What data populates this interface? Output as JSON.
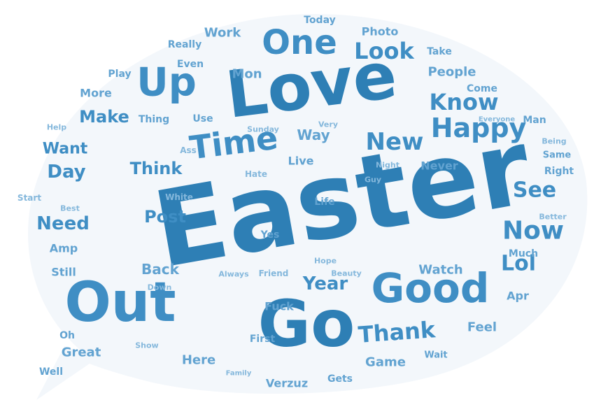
{
  "bubble_color": "#f3f7fb",
  "palette": {
    "dark": "#2e7fb5",
    "mid": "#3f8ec4",
    "light": "#62a3d1",
    "pale": "#85b8dc"
  },
  "words": [
    {
      "text": "Easter",
      "tone": "dark"
    },
    {
      "text": "Love",
      "tone": "dark"
    },
    {
      "text": "Go",
      "tone": "dark"
    },
    {
      "text": "Out",
      "tone": "mid"
    },
    {
      "text": "Good",
      "tone": "mid"
    },
    {
      "text": "One",
      "tone": "mid"
    },
    {
      "text": "Up",
      "tone": "mid"
    },
    {
      "text": "Time",
      "tone": "mid"
    },
    {
      "text": "Happy",
      "tone": "mid"
    },
    {
      "text": "Now",
      "tone": "mid"
    },
    {
      "text": "Thank",
      "tone": "mid"
    },
    {
      "text": "Look",
      "tone": "mid"
    },
    {
      "text": "Know",
      "tone": "mid"
    },
    {
      "text": "New",
      "tone": "mid"
    },
    {
      "text": "Lol",
      "tone": "mid"
    },
    {
      "text": "See",
      "tone": "mid"
    },
    {
      "text": "Year",
      "tone": "mid"
    },
    {
      "text": "Day",
      "tone": "mid"
    },
    {
      "text": "Need",
      "tone": "mid"
    },
    {
      "text": "Make",
      "tone": "mid"
    },
    {
      "text": "Think",
      "tone": "mid"
    },
    {
      "text": "Post",
      "tone": "mid"
    },
    {
      "text": "Want",
      "tone": "mid"
    },
    {
      "text": "Way",
      "tone": "light"
    },
    {
      "text": "Back",
      "tone": "light"
    },
    {
      "text": "Watch",
      "tone": "light"
    },
    {
      "text": "Game",
      "tone": "light"
    },
    {
      "text": "Great",
      "tone": "light"
    },
    {
      "text": "Here",
      "tone": "light"
    },
    {
      "text": "Feel",
      "tone": "light"
    },
    {
      "text": "Apr",
      "tone": "light"
    },
    {
      "text": "More",
      "tone": "light"
    },
    {
      "text": "Mon",
      "tone": "light"
    },
    {
      "text": "Work",
      "tone": "light"
    },
    {
      "text": "People",
      "tone": "light"
    },
    {
      "text": "Photo",
      "tone": "light"
    },
    {
      "text": "Never",
      "tone": "light"
    },
    {
      "text": "Amp",
      "tone": "light"
    },
    {
      "text": "Live",
      "tone": "light"
    },
    {
      "text": "Fuck",
      "tone": "light"
    },
    {
      "text": "Verzuz",
      "tone": "light"
    },
    {
      "text": "Still",
      "tone": "light"
    },
    {
      "text": "Right",
      "tone": "light"
    },
    {
      "text": "Take",
      "tone": "light"
    },
    {
      "text": "Come",
      "tone": "light"
    },
    {
      "text": "Man",
      "tone": "light"
    },
    {
      "text": "Thing",
      "tone": "light"
    },
    {
      "text": "Use",
      "tone": "light"
    },
    {
      "text": "Really",
      "tone": "light"
    },
    {
      "text": "Even",
      "tone": "light"
    },
    {
      "text": "Play",
      "tone": "light"
    },
    {
      "text": "Today",
      "tone": "light"
    },
    {
      "text": "Life",
      "tone": "light"
    },
    {
      "text": "Yes",
      "tone": "light"
    },
    {
      "text": "First",
      "tone": "light"
    },
    {
      "text": "Gets",
      "tone": "light"
    },
    {
      "text": "Much",
      "tone": "light"
    },
    {
      "text": "Oh",
      "tone": "light"
    },
    {
      "text": "Well",
      "tone": "light"
    },
    {
      "text": "Wait",
      "tone": "light"
    },
    {
      "text": "Same",
      "tone": "light"
    },
    {
      "text": "Being",
      "tone": "pale"
    },
    {
      "text": "Better",
      "tone": "pale"
    },
    {
      "text": "Start",
      "tone": "pale"
    },
    {
      "text": "Best",
      "tone": "pale"
    },
    {
      "text": "Help",
      "tone": "pale"
    },
    {
      "text": "White",
      "tone": "pale"
    },
    {
      "text": "Ass",
      "tone": "pale"
    },
    {
      "text": "Hate",
      "tone": "pale"
    },
    {
      "text": "Sunday",
      "tone": "pale"
    },
    {
      "text": "Very",
      "tone": "pale"
    },
    {
      "text": "Night",
      "tone": "pale"
    },
    {
      "text": "Guy",
      "tone": "pale"
    },
    {
      "text": "Everyone",
      "tone": "pale"
    },
    {
      "text": "Always",
      "tone": "pale"
    },
    {
      "text": "Friend",
      "tone": "pale"
    },
    {
      "text": "Hope",
      "tone": "pale"
    },
    {
      "text": "Beauty",
      "tone": "pale"
    },
    {
      "text": "Down",
      "tone": "pale"
    },
    {
      "text": "Show",
      "tone": "pale"
    },
    {
      "text": "Family",
      "tone": "pale"
    }
  ]
}
